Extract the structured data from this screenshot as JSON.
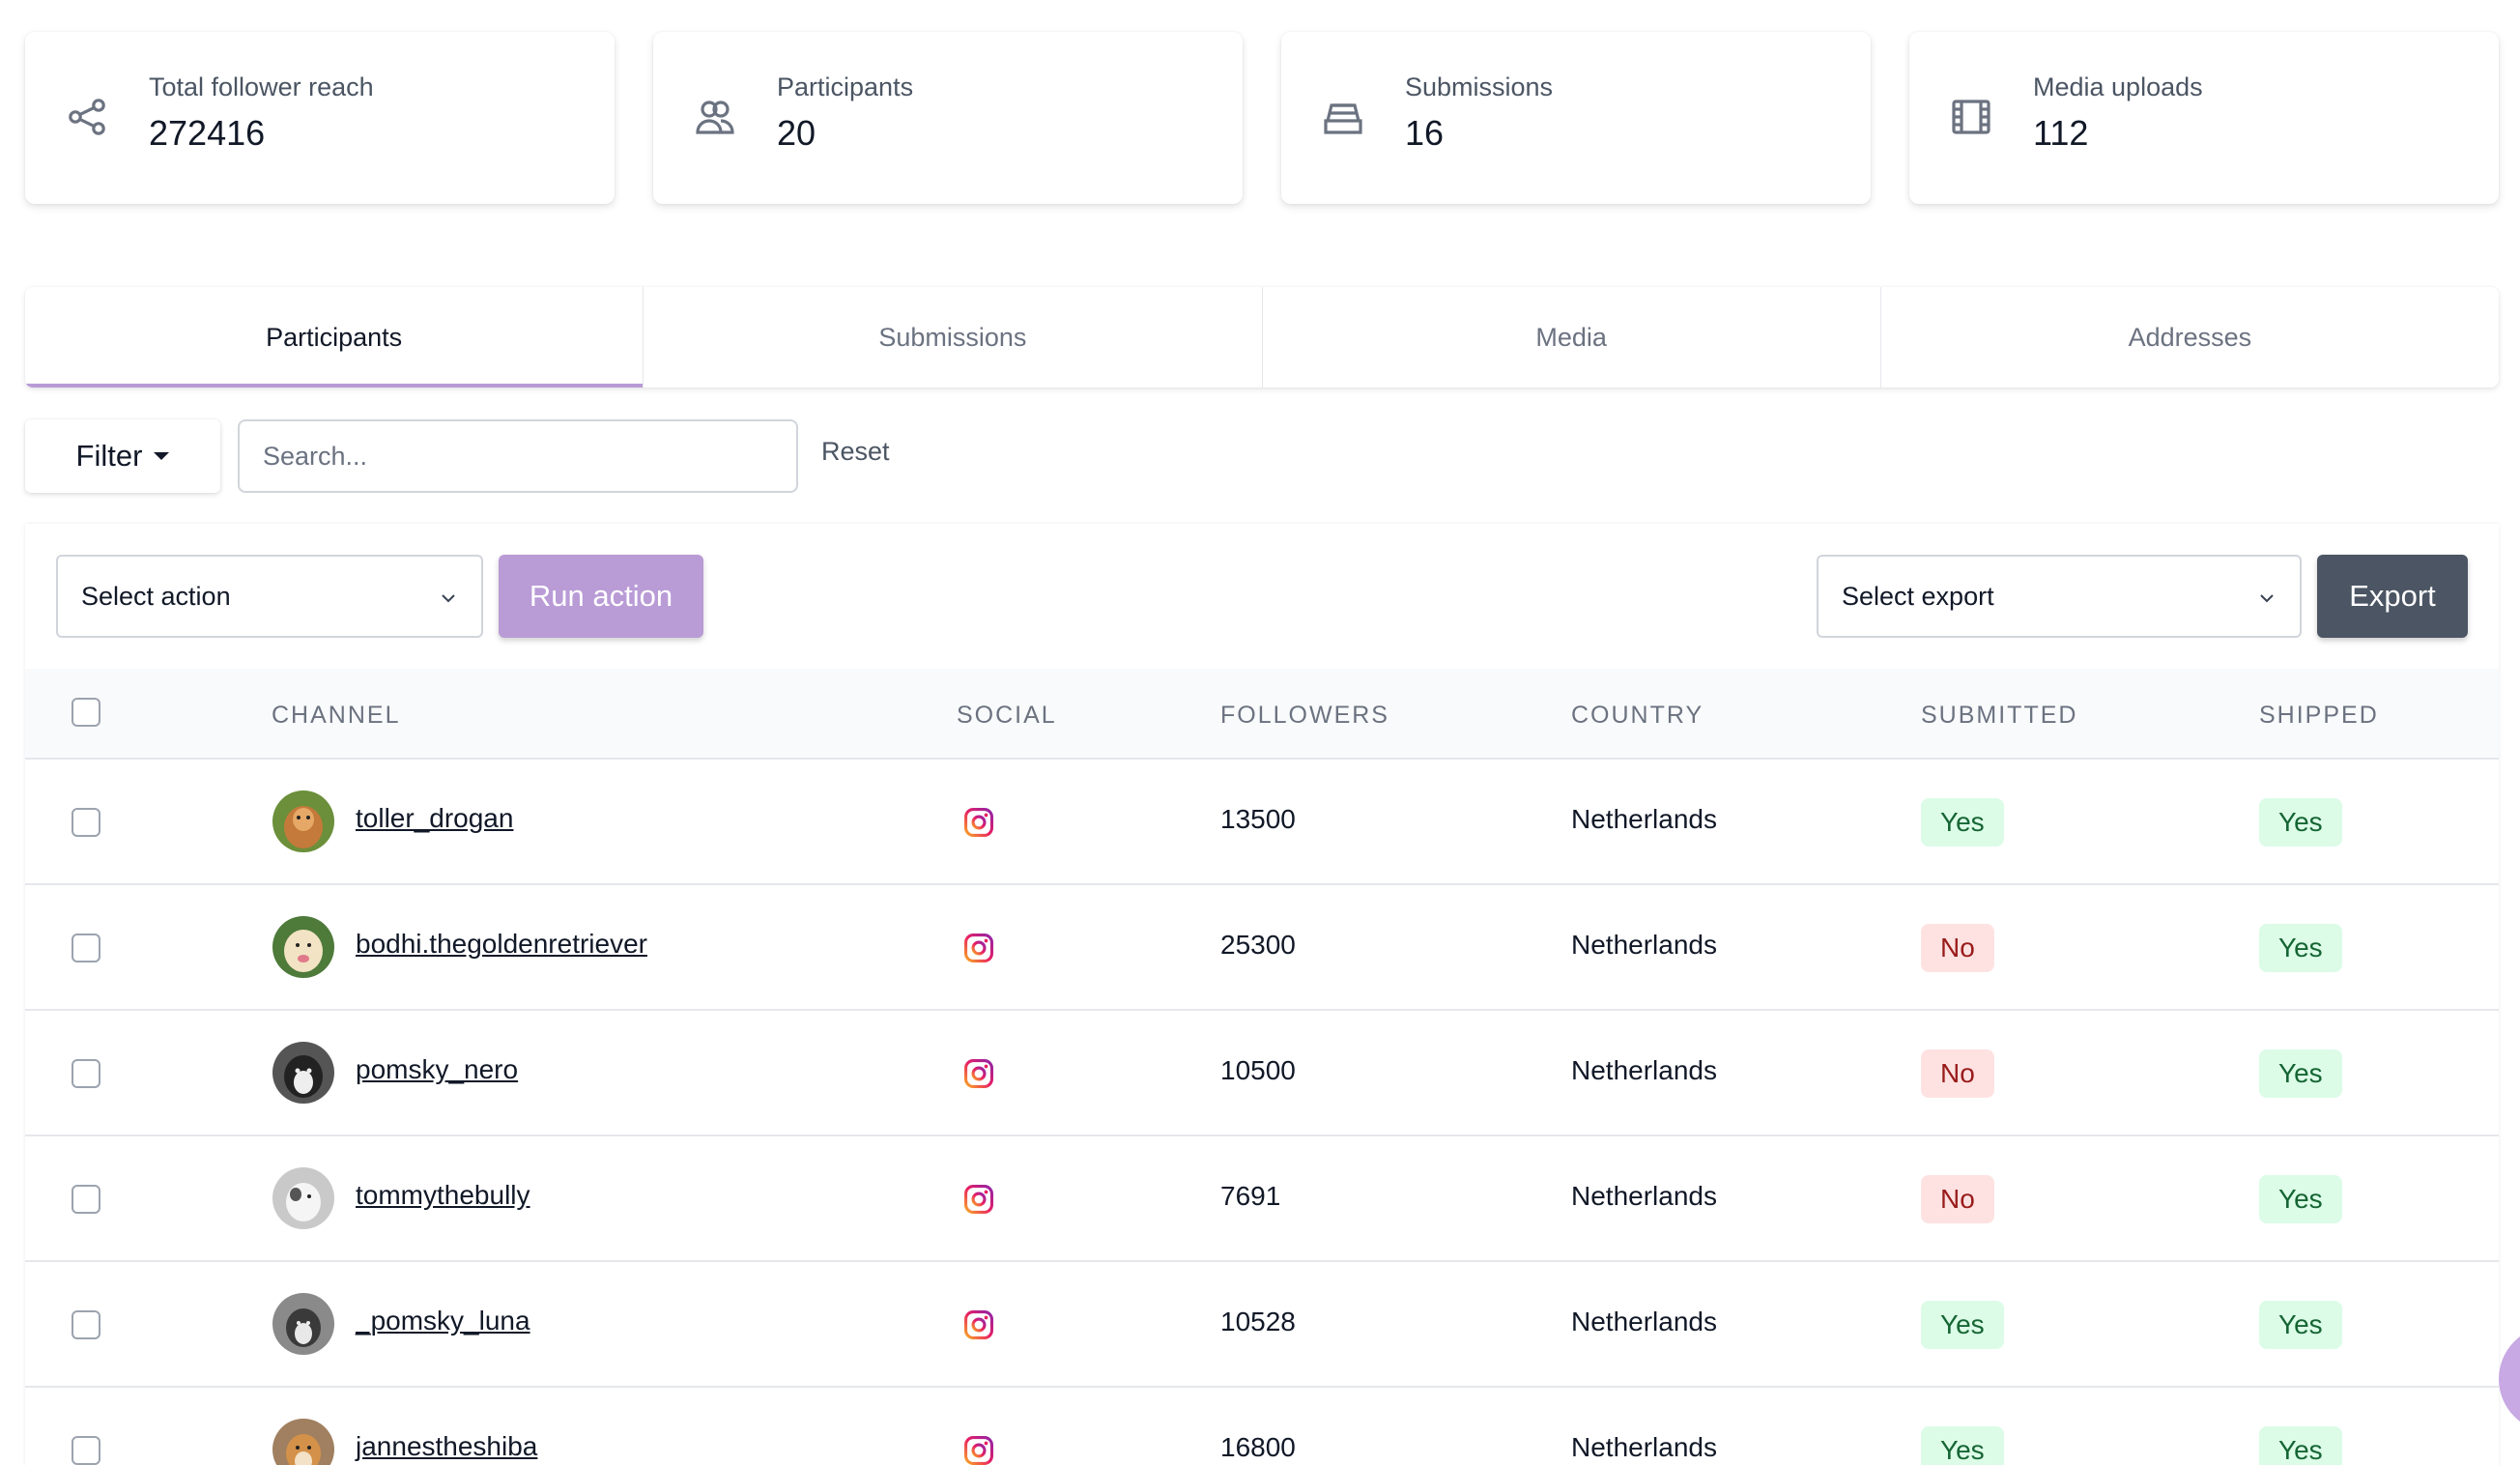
{
  "stats": [
    {
      "label": "Total follower reach",
      "value": "272416",
      "icon": "share-icon"
    },
    {
      "label": "Participants",
      "value": "20",
      "icon": "users-icon"
    },
    {
      "label": "Submissions",
      "value": "16",
      "icon": "inbox-icon"
    },
    {
      "label": "Media uploads",
      "value": "112",
      "icon": "film-icon"
    }
  ],
  "tabs": [
    {
      "label": "Participants",
      "active": true
    },
    {
      "label": "Submissions",
      "active": false
    },
    {
      "label": "Media",
      "active": false
    },
    {
      "label": "Addresses",
      "active": false
    }
  ],
  "filter": {
    "filter_label": "Filter",
    "search_placeholder": "Search...",
    "reset_label": "Reset"
  },
  "toolbar": {
    "select_action": "Select action",
    "run_action": "Run action",
    "select_export": "Select export",
    "export": "Export"
  },
  "table": {
    "headers": {
      "channel": "CHANNEL",
      "social": "SOCIAL",
      "followers": "FOLLOWERS",
      "country": "COUNTRY",
      "submitted": "SUBMITTED",
      "shipped": "SHIPPED"
    },
    "rows": [
      {
        "channel": "toller_drogan",
        "followers": "13500",
        "country": "Netherlands",
        "submitted": "Yes",
        "shipped": "Yes"
      },
      {
        "channel": "bodhi.thegoldenretriever",
        "followers": "25300",
        "country": "Netherlands",
        "submitted": "No",
        "shipped": "Yes"
      },
      {
        "channel": "pomsky_nero",
        "followers": "10500",
        "country": "Netherlands",
        "submitted": "No",
        "shipped": "Yes"
      },
      {
        "channel": "tommythebully",
        "followers": "7691",
        "country": "Netherlands",
        "submitted": "No",
        "shipped": "Yes"
      },
      {
        "channel": "_pomsky_luna",
        "followers": "10528",
        "country": "Netherlands",
        "submitted": "Yes",
        "shipped": "Yes"
      },
      {
        "channel": "jannestheshiba",
        "followers": "16800",
        "country": "Netherlands",
        "submitted": "Yes",
        "shipped": "Yes"
      }
    ]
  },
  "colors": {
    "accent": "#b99bd6",
    "dark_button": "#4b5563",
    "yes_bg": "#dcfce7",
    "yes_text": "#166534",
    "no_bg": "#fee2e2",
    "no_text": "#991b1b"
  }
}
